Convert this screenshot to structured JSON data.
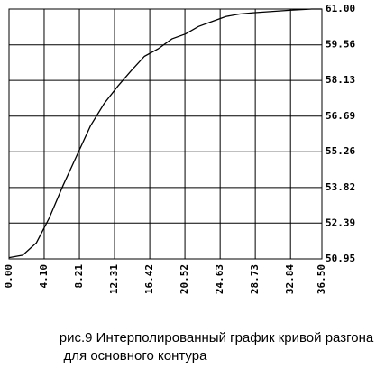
{
  "chart_data": {
    "type": "line",
    "caption": [
      "рис.9 Интерполированный график кривой разгона",
      "для основного контура"
    ],
    "x": [
      0,
      1.6,
      3.2,
      4.7,
      6.3,
      7.9,
      9.5,
      11.1,
      12.7,
      14.2,
      15.8,
      17.4,
      19.0,
      20.6,
      22.1,
      23.7,
      25.3,
      26.9,
      28.5,
      30.6,
      32.7,
      35.3,
      36.5
    ],
    "values": [
      51.0,
      51.1,
      51.6,
      52.6,
      53.9,
      55.1,
      56.3,
      57.2,
      57.9,
      58.5,
      59.1,
      59.4,
      59.8,
      60.0,
      60.3,
      60.5,
      60.7,
      60.8,
      60.85,
      60.9,
      60.95,
      61.0,
      61.0
    ],
    "color": "#000000",
    "xlim": [
      0,
      36.5
    ],
    "xticks": [
      {
        "value": 0,
        "label": "0.00"
      },
      {
        "value": 4.1,
        "label": "4.10"
      },
      8.21,
      12.31,
      16.42,
      20.52,
      24.63,
      28.73,
      32.84,
      {
        "value": 36.5,
        "label": "36.50"
      }
    ],
    "ylim": [
      50.95,
      61
    ],
    "yticks": [
      50.95,
      52.39,
      53.82,
      55.26,
      56.69,
      58.13,
      59.56,
      {
        "value": 61,
        "label": "61.00"
      }
    ],
    "grid": true
  }
}
